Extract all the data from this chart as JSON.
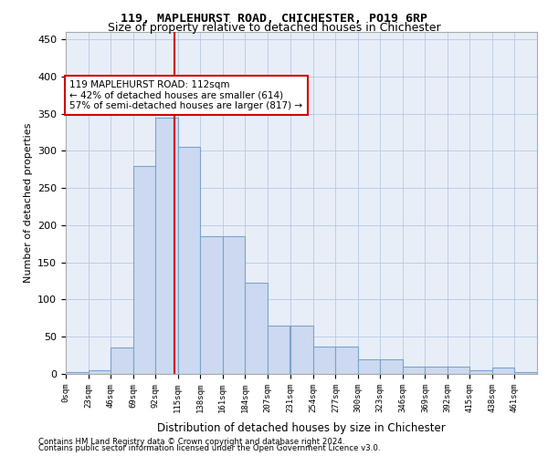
{
  "title1": "119, MAPLEHURST ROAD, CHICHESTER, PO19 6RP",
  "title2": "Size of property relative to detached houses in Chichester",
  "xlabel": "Distribution of detached houses by size in Chichester",
  "ylabel": "Number of detached properties",
  "bar_values": [
    3,
    5,
    35,
    280,
    345,
    305,
    185,
    185,
    123,
    65,
    65,
    37,
    37,
    20,
    20,
    10,
    10,
    10,
    5,
    8,
    2
  ],
  "bin_left_edges": [
    0,
    23,
    46,
    69,
    92,
    115,
    138,
    161,
    184,
    207,
    231,
    254,
    277,
    300,
    323,
    346,
    369,
    392,
    415,
    438,
    461
  ],
  "tick_labels": [
    "0sqm",
    "23sqm",
    "46sqm",
    "69sqm",
    "92sqm",
    "115sqm",
    "138sqm",
    "161sqm",
    "184sqm",
    "207sqm",
    "231sqm",
    "254sqm",
    "277sqm",
    "300sqm",
    "323sqm",
    "346sqm",
    "369sqm",
    "392sqm",
    "415sqm",
    "438sqm",
    "461sqm"
  ],
  "bin_width": 23,
  "bar_facecolor": "#ccd9f0",
  "bar_edgecolor": "#7aa3cc",
  "vline_x": 112,
  "vline_color": "#cc0000",
  "annotation_text": "119 MAPLEHURST ROAD: 112sqm\n← 42% of detached houses are smaller (614)\n57% of semi-detached houses are larger (817) →",
  "annotation_box_edgecolor": "#cc0000",
  "annotation_box_facecolor": "#ffffff",
  "ylim": [
    0,
    460
  ],
  "yticks": [
    0,
    50,
    100,
    150,
    200,
    250,
    300,
    350,
    400,
    450
  ],
  "background_color": "#e8eef8",
  "footer_line1": "Contains HM Land Registry data © Crown copyright and database right 2024.",
  "footer_line2": "Contains public sector information licensed under the Open Government Licence v3.0."
}
